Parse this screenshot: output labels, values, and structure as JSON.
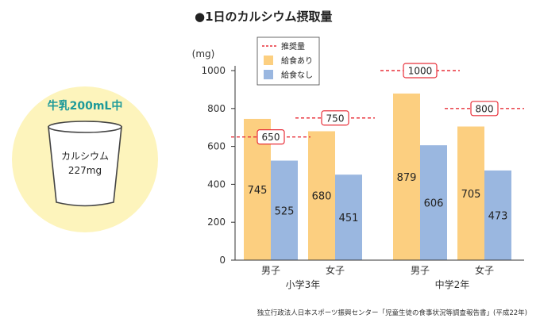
{
  "chart_data": {
    "type": "bar",
    "title": "●1日のカルシウム摂取量",
    "ylabel": "(mg)",
    "ylim": [
      0,
      1000
    ],
    "yticks": [
      0,
      200,
      400,
      600,
      800,
      1000
    ],
    "grid": false,
    "legend_position": "top",
    "legend": [
      {
        "label": "推奨量",
        "kind": "dashed-line",
        "color": "#e8303a"
      },
      {
        "label": "給食あり",
        "kind": "box",
        "color": "#fccf80"
      },
      {
        "label": "給食なし",
        "kind": "box",
        "color": "#9ab7e0"
      }
    ],
    "groups": [
      {
        "label": "小学3年",
        "categories": [
          "男子",
          "女子"
        ]
      },
      {
        "label": "中学2年",
        "categories": [
          "男子",
          "女子"
        ]
      }
    ],
    "categories": [
      "男子",
      "女子",
      "男子",
      "女子"
    ],
    "series": [
      {
        "name": "給食あり",
        "color": "#fccf80",
        "values": [
          745,
          680,
          879,
          705
        ]
      },
      {
        "name": "給食なし",
        "color": "#9ab7e0",
        "values": [
          525,
          451,
          606,
          473
        ]
      }
    ],
    "recommended": {
      "name": "推奨量",
      "color": "#e8303a",
      "values": [
        650,
        750,
        1000,
        800
      ]
    }
  },
  "milk_cup": {
    "title": "牛乳200mL中",
    "line1": "カルシウム",
    "line2": "227mg",
    "circle_color": "#fdf4bc",
    "title_color": "#1e9a9a"
  },
  "source": "独立行政法人日本スポーツ振興センター「児童生徒の食事状況等調査報告書」(平成22年)"
}
